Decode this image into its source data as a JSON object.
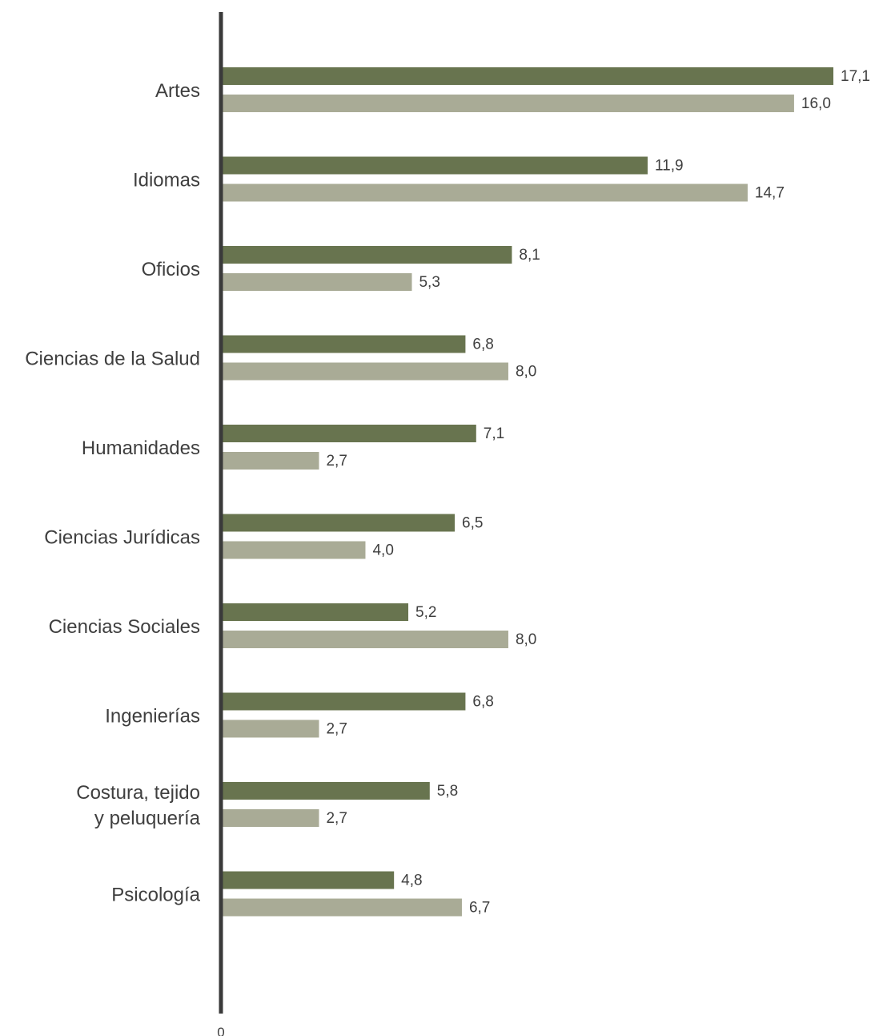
{
  "chart_data": {
    "type": "bar",
    "orientation": "horizontal",
    "categories": [
      [
        "Artes"
      ],
      [
        "Idiomas"
      ],
      [
        "Oficios"
      ],
      [
        "Ciencias de la Salud"
      ],
      [
        "Humanidades"
      ],
      [
        "Ciencias Jurídicas"
      ],
      [
        "Ciencias Sociales"
      ],
      [
        "Ingenierías"
      ],
      [
        "Costura, tejido",
        "y peluquería"
      ],
      [
        "Psicología"
      ]
    ],
    "series": [
      {
        "color": "#68744f",
        "values": [
          17.1,
          11.9,
          8.1,
          6.8,
          7.1,
          6.5,
          5.2,
          6.8,
          5.8,
          4.8
        ],
        "labels": [
          "17,1",
          "11,9",
          "8,1",
          "6,8",
          "7,1",
          "6,5",
          "5,2",
          "6,8",
          "5,8",
          "4,8"
        ]
      },
      {
        "color": "#a9ab96",
        "values": [
          16.0,
          14.7,
          5.3,
          8.0,
          2.7,
          4.0,
          8.0,
          2.7,
          2.7,
          6.7
        ],
        "labels": [
          "16,0",
          "14,7",
          "5,3",
          "8,0",
          "2,7",
          "4,0",
          "8,0",
          "2,7",
          "2,7",
          "6,7"
        ]
      }
    ],
    "x_tick_labels": [
      "0"
    ],
    "xlim": [
      0,
      17.1
    ],
    "axis_color": "#3a3a3a",
    "legend": "none",
    "grid": false
  }
}
